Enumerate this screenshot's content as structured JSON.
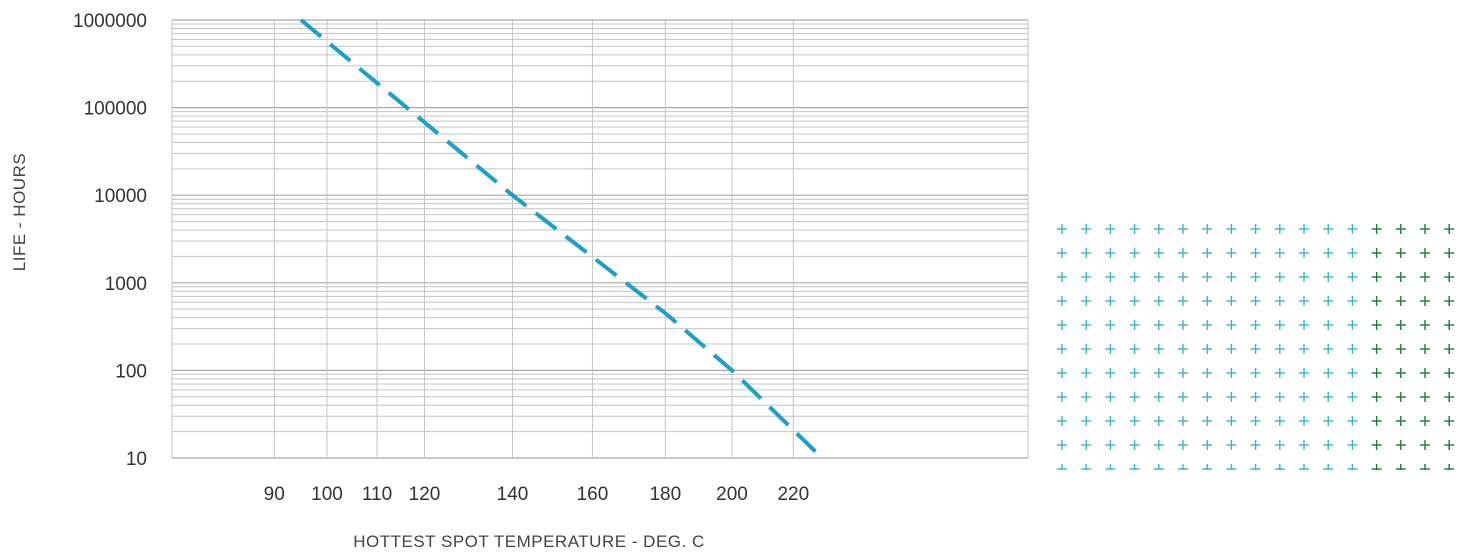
{
  "chart_data": {
    "type": "line",
    "xlabel": "HOTTEST SPOT TEMPERATURE - DEG. C",
    "ylabel": "LIFE - HOURS",
    "y_scale": "log",
    "x_scale": "reciprocal",
    "ylim": [
      10,
      1000000
    ],
    "x_ticks": [
      90,
      100,
      110,
      120,
      140,
      160,
      180,
      200,
      220
    ],
    "y_ticks": [
      "1000000",
      "100000",
      "10000",
      "1000",
      "100",
      "10"
    ],
    "grid": true,
    "series": [
      {
        "style": "dashed",
        "color": "#1ba1c8",
        "points": [
          {
            "x": 95,
            "y": 1000000
          },
          {
            "x": 140,
            "y": 10000
          },
          {
            "x": 180,
            "y": 450
          },
          {
            "x": 200,
            "y": 100
          },
          {
            "x": 230,
            "y": 10
          }
        ]
      }
    ]
  },
  "decor": {
    "pattern_colors": [
      "#33b8c9",
      "#1a7a3c"
    ]
  }
}
